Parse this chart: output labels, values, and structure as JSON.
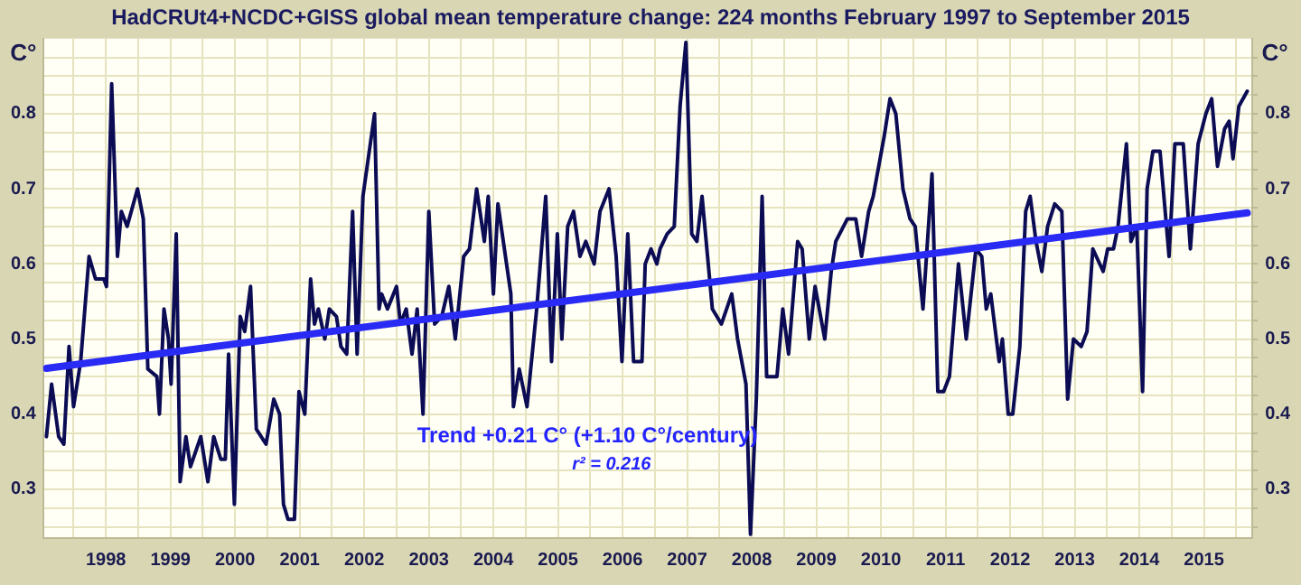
{
  "chart_data": {
    "type": "line",
    "title": "HadCRUt4+NCDC+GISS global mean temperature change: 224 months February 1997 to September 2015",
    "ylabel": "C°",
    "y2label": "C°",
    "annotations": [
      "Trend +0.21 C° (+1.10 C°/century)",
      "r² = 0.216"
    ],
    "series": [
      {
        "color": "#0c0c55",
        "x": [
          1997.08,
          1997.16,
          1997.27,
          1997.35,
          1997.43,
          1997.5,
          1997.61,
          1997.74,
          1997.84,
          1997.97,
          1998.01,
          1998.09,
          1998.18,
          1998.24,
          1998.33,
          1998.49,
          1998.58,
          1998.65,
          1998.79,
          1998.83,
          1998.9,
          1998.97,
          1999.01,
          1999.09,
          1999.15,
          1999.24,
          1999.31,
          1999.47,
          1999.58,
          1999.67,
          1999.78,
          1999.85,
          1999.9,
          1999.99,
          2000.08,
          2000.15,
          2000.24,
          2000.33,
          2000.48,
          2000.6,
          2000.69,
          2000.75,
          2000.82,
          2000.92,
          2000.99,
          2001.08,
          2001.17,
          2001.23,
          2001.29,
          2001.39,
          2001.46,
          2001.57,
          2001.64,
          2001.73,
          2001.82,
          2001.89,
          2001.98,
          2002.16,
          2002.23,
          2002.27,
          2002.36,
          2002.5,
          2002.56,
          2002.65,
          2002.74,
          2002.82,
          2002.91,
          2003.0,
          2003.09,
          2003.2,
          2003.31,
          2003.41,
          2003.54,
          2003.63,
          2003.74,
          2003.86,
          2003.92,
          2004.0,
          2004.07,
          2004.27,
          2004.31,
          2004.4,
          2004.52,
          2004.67,
          2004.81,
          2004.9,
          2004.99,
          2005.06,
          2005.15,
          2005.24,
          2005.34,
          2005.43,
          2005.56,
          2005.65,
          2005.79,
          2005.9,
          2005.99,
          2006.08,
          2006.17,
          2006.3,
          2006.35,
          2006.44,
          2006.53,
          2006.58,
          2006.69,
          2006.8,
          2006.89,
          2006.98,
          2007.07,
          2007.15,
          2007.23,
          2007.39,
          2007.53,
          2007.69,
          2007.78,
          2007.91,
          2007.98,
          2008.07,
          2008.16,
          2008.23,
          2008.39,
          2008.48,
          2008.57,
          2008.71,
          2008.78,
          2008.89,
          2008.98,
          2009.13,
          2009.23,
          2009.3,
          2009.48,
          2009.61,
          2009.7,
          2009.81,
          2009.88,
          2010.05,
          2010.14,
          2010.23,
          2010.34,
          2010.45,
          2010.53,
          2010.65,
          2010.79,
          2010.88,
          2010.97,
          2011.06,
          2011.2,
          2011.32,
          2011.47,
          2011.56,
          2011.63,
          2011.7,
          2011.83,
          2011.88,
          2011.97,
          2012.04,
          2012.15,
          2012.24,
          2012.31,
          2012.4,
          2012.49,
          2012.58,
          2012.69,
          2012.8,
          2012.89,
          2012.98,
          2013.1,
          2013.19,
          2013.28,
          2013.44,
          2013.51,
          2013.6,
          2013.67,
          2013.8,
          2013.87,
          2013.96,
          2014.05,
          2014.12,
          2014.21,
          2014.32,
          2014.46,
          2014.55,
          2014.68,
          2014.79,
          2014.91,
          2015.03,
          2015.12,
          2015.21,
          2015.32,
          2015.39,
          2015.45,
          2015.54,
          2015.67
        ],
        "values": [
          0.37,
          0.44,
          0.37,
          0.36,
          0.49,
          0.41,
          0.47,
          0.61,
          0.58,
          0.58,
          0.57,
          0.84,
          0.61,
          0.67,
          0.65,
          0.7,
          0.66,
          0.46,
          0.45,
          0.4,
          0.54,
          0.5,
          0.44,
          0.64,
          0.31,
          0.37,
          0.33,
          0.37,
          0.31,
          0.37,
          0.34,
          0.34,
          0.48,
          0.28,
          0.53,
          0.51,
          0.57,
          0.38,
          0.36,
          0.42,
          0.4,
          0.28,
          0.26,
          0.26,
          0.43,
          0.4,
          0.58,
          0.52,
          0.54,
          0.5,
          0.54,
          0.53,
          0.49,
          0.48,
          0.67,
          0.48,
          0.69,
          0.8,
          0.54,
          0.56,
          0.54,
          0.57,
          0.52,
          0.54,
          0.48,
          0.54,
          0.4,
          0.67,
          0.52,
          0.53,
          0.57,
          0.5,
          0.61,
          0.62,
          0.7,
          0.63,
          0.69,
          0.56,
          0.68,
          0.56,
          0.41,
          0.46,
          0.41,
          0.54,
          0.69,
          0.47,
          0.64,
          0.5,
          0.65,
          0.67,
          0.61,
          0.63,
          0.6,
          0.67,
          0.7,
          0.61,
          0.47,
          0.64,
          0.47,
          0.47,
          0.6,
          0.62,
          0.6,
          0.62,
          0.64,
          0.65,
          0.81,
          0.895,
          0.64,
          0.63,
          0.69,
          0.54,
          0.52,
          0.56,
          0.5,
          0.44,
          0.24,
          0.42,
          0.69,
          0.45,
          0.45,
          0.54,
          0.48,
          0.63,
          0.62,
          0.5,
          0.57,
          0.5,
          0.59,
          0.63,
          0.66,
          0.66,
          0.61,
          0.67,
          0.69,
          0.77,
          0.82,
          0.8,
          0.7,
          0.66,
          0.65,
          0.54,
          0.72,
          0.43,
          0.43,
          0.45,
          0.6,
          0.5,
          0.62,
          0.61,
          0.54,
          0.56,
          0.47,
          0.5,
          0.4,
          0.4,
          0.49,
          0.67,
          0.69,
          0.63,
          0.59,
          0.65,
          0.68,
          0.67,
          0.42,
          0.5,
          0.49,
          0.51,
          0.62,
          0.59,
          0.62,
          0.62,
          0.65,
          0.76,
          0.63,
          0.65,
          0.43,
          0.7,
          0.75,
          0.75,
          0.61,
          0.76,
          0.76,
          0.62,
          0.76,
          0.8,
          0.82,
          0.73,
          0.78,
          0.79,
          0.74,
          0.81,
          0.83
        ]
      },
      {
        "type": "line",
        "color": "#2a2af5",
        "x": [
          1997.08,
          2015.67
        ],
        "values": [
          0.461,
          0.668
        ]
      }
    ],
    "xlim": [
      1997.03,
      2015.75
    ],
    "xticks": [
      {
        "value": 1997.5,
        "label": null
      },
      1998,
      {
        "value": 1998.5,
        "label": null
      },
      1999,
      {
        "value": 1999.5,
        "label": null
      },
      2000,
      {
        "value": 2000.5,
        "label": null
      },
      2001,
      {
        "value": 2001.5,
        "label": null
      },
      2002,
      {
        "value": 2002.5,
        "label": null
      },
      2003,
      {
        "value": 2003.5,
        "label": null
      },
      2004,
      {
        "value": 2004.5,
        "label": null
      },
      2005,
      {
        "value": 2005.5,
        "label": null
      },
      2006,
      {
        "value": 2006.5,
        "label": null
      },
      2007,
      {
        "value": 2007.5,
        "label": null
      },
      2008,
      {
        "value": 2008.5,
        "label": null
      },
      2009,
      {
        "value": 2009.5,
        "label": null
      },
      2010,
      {
        "value": 2010.5,
        "label": null
      },
      2011,
      {
        "value": 2011.5,
        "label": null
      },
      2012,
      {
        "value": 2012.5,
        "label": null
      },
      2013,
      {
        "value": 2013.5,
        "label": null
      },
      2014,
      {
        "value": 2014.5,
        "label": null
      },
      2015,
      {
        "value": 2015.5,
        "label": null
      }
    ],
    "ylim": [
      0.235,
      0.9
    ],
    "yticks": [
      {
        "value": 0.25,
        "label": null
      },
      {
        "value": 0.275,
        "label": null
      },
      0.3,
      {
        "value": 0.325,
        "label": null
      },
      {
        "value": 0.35,
        "label": null
      },
      {
        "value": 0.375,
        "label": null
      },
      0.4,
      {
        "value": 0.425,
        "label": null
      },
      {
        "value": 0.45,
        "label": null
      },
      {
        "value": 0.475,
        "label": null
      },
      0.5,
      {
        "value": 0.525,
        "label": null
      },
      {
        "value": 0.55,
        "label": null
      },
      {
        "value": 0.575,
        "label": null
      },
      0.6,
      {
        "value": 0.625,
        "label": null
      },
      {
        "value": 0.65,
        "label": null
      },
      {
        "value": 0.675,
        "label": null
      },
      0.7,
      {
        "value": 0.725,
        "label": null
      },
      {
        "value": 0.75,
        "label": null
      },
      {
        "value": 0.775,
        "label": null
      },
      0.8,
      {
        "value": 0.825,
        "label": null
      },
      {
        "value": 0.85,
        "label": null
      },
      {
        "value": 0.875,
        "label": null
      }
    ],
    "y2lim": [
      0.235,
      0.9
    ],
    "y2ticks": [
      {
        "value": 0.25,
        "label": null
      },
      {
        "value": 0.275,
        "label": null
      },
      0.3,
      {
        "value": 0.325,
        "label": null
      },
      {
        "value": 0.35,
        "label": null
      },
      {
        "value": 0.375,
        "label": null
      },
      0.4,
      {
        "value": 0.425,
        "label": null
      },
      {
        "value": 0.45,
        "label": null
      },
      {
        "value": 0.475,
        "label": null
      },
      0.5,
      {
        "value": 0.525,
        "label": null
      },
      {
        "value": 0.55,
        "label": null
      },
      {
        "value": 0.575,
        "label": null
      },
      0.6,
      {
        "value": 0.625,
        "label": null
      },
      {
        "value": 0.65,
        "label": null
      },
      {
        "value": 0.675,
        "label": null
      },
      0.7,
      {
        "value": 0.725,
        "label": null
      },
      {
        "value": 0.75,
        "label": null
      },
      {
        "value": 0.775,
        "label": null
      },
      0.8,
      {
        "value": 0.825,
        "label": null
      },
      {
        "value": 0.85,
        "label": null
      },
      {
        "value": 0.875,
        "label": null
      }
    ],
    "grid": true,
    "legend": false,
    "marker": "none",
    "line_style": "solid"
  }
}
